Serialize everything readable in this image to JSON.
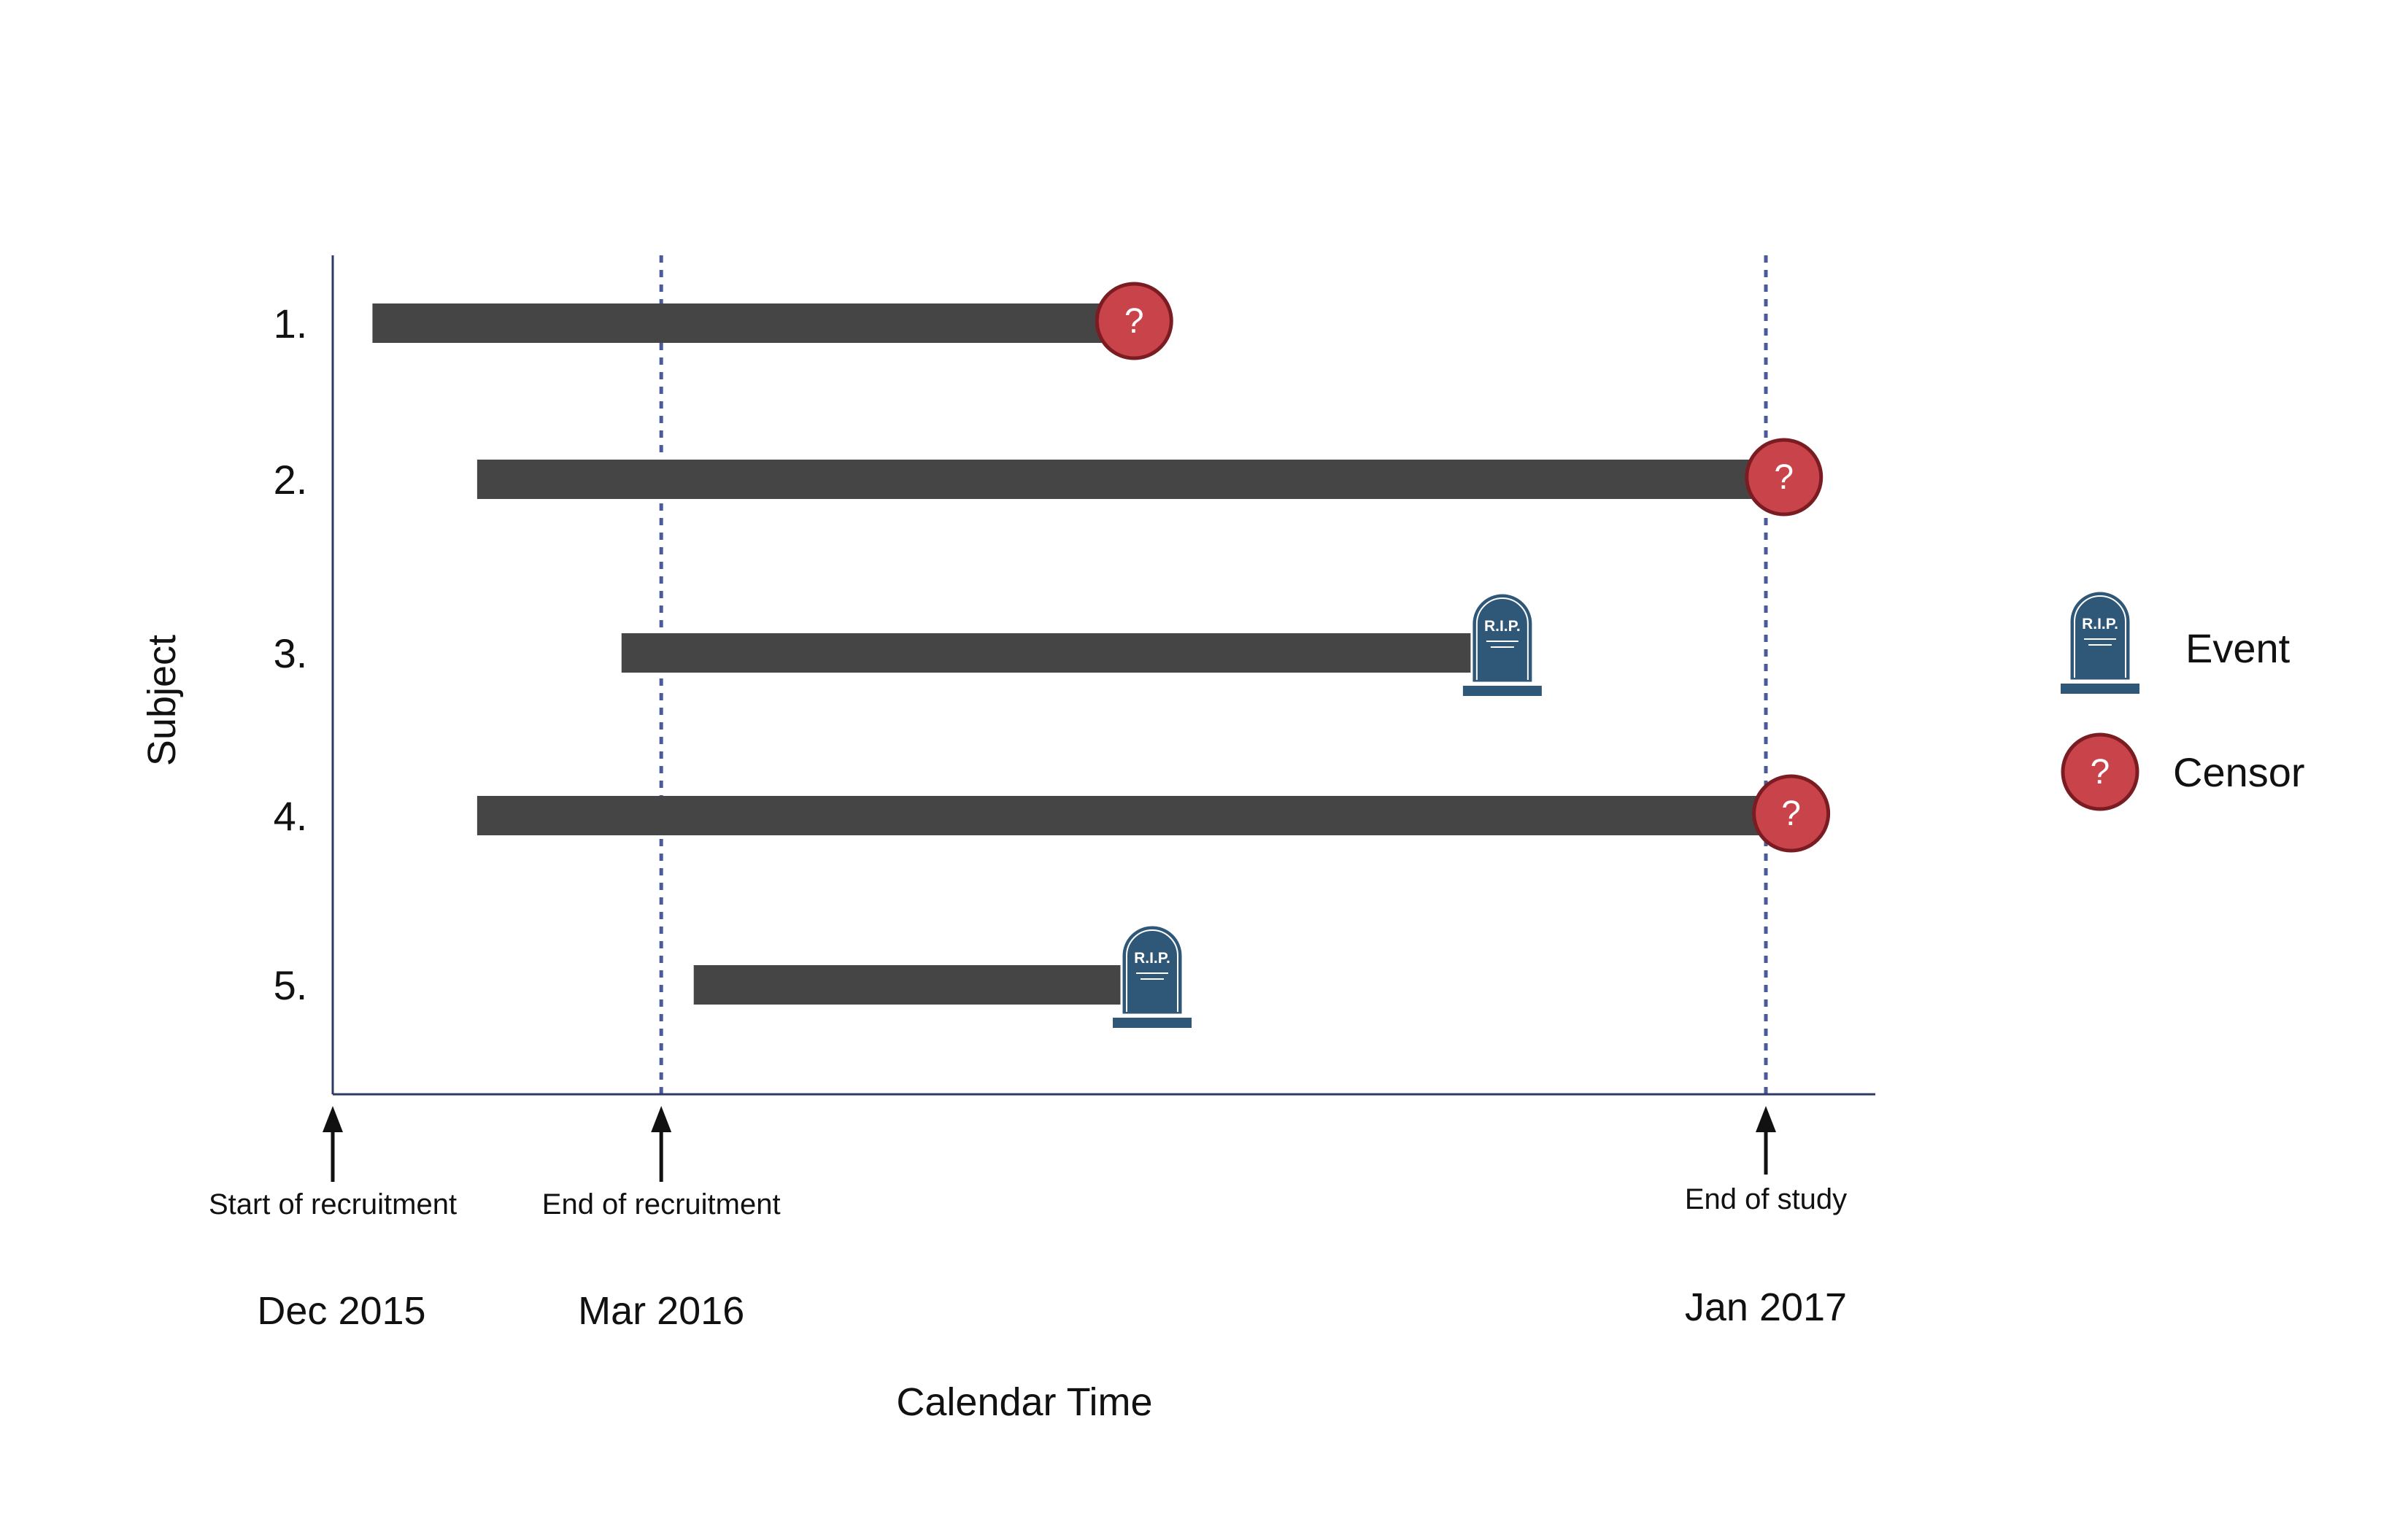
{
  "chart_data": {
    "type": "timeline",
    "xlabel": "Calendar Time",
    "ylabel": "Subject",
    "x_unit": "months",
    "xlim": [
      "2015-12",
      "2017-01"
    ],
    "reference_lines": [
      {
        "date": "2015-12",
        "tick_label": "Dec 2015",
        "annotation": "Start of recruitment",
        "dashed": false
      },
      {
        "date": "2016-03",
        "tick_label": "Mar 2016",
        "annotation": "End of recruitment",
        "dashed": true
      },
      {
        "date": "2017-01",
        "tick_label": "Jan 2017",
        "annotation": "End of study",
        "dashed": true
      }
    ],
    "subjects": [
      {
        "label": "1.",
        "start": "2015-12-12",
        "end": "2016-07-10",
        "outcome": "censor"
      },
      {
        "label": "2.",
        "start": "2016-01-10",
        "end": "2017-01-06",
        "outcome": "censor"
      },
      {
        "label": "3.",
        "start": "2016-02-19",
        "end": "2016-10-20",
        "outcome": "event"
      },
      {
        "label": "4.",
        "start": "2016-01-10",
        "end": "2017-01-08",
        "outcome": "censor"
      },
      {
        "label": "5.",
        "start": "2016-03-10",
        "end": "2016-07-15",
        "outcome": "event"
      }
    ],
    "legend": [
      {
        "key": "event",
        "label": "Event",
        "icon": "tombstone-icon"
      },
      {
        "key": "censor",
        "label": "Censor",
        "icon": "question-circle-icon"
      }
    ],
    "legend_position": "right",
    "event_icon_text": "R.I.P.",
    "censor_icon_text": "?",
    "colors": {
      "bar": "#454545",
      "axis": "#2c3a66",
      "reference_line": "#4a5a9a",
      "censor_fill": "#c8444a",
      "censor_stroke": "#7a1c22",
      "event_fill": "#2f5778",
      "arrow": "#111111"
    }
  }
}
